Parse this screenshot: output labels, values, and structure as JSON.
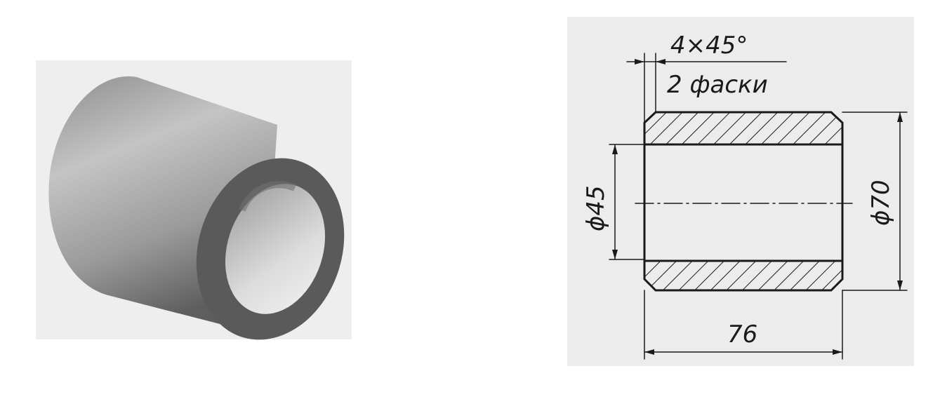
{
  "drawing": {
    "chamfer_spec": "4×45°",
    "chamfer_note": "2 фаски",
    "inner_diameter": "ϕ45",
    "outer_diameter": "ϕ70",
    "length": "76"
  },
  "colors": {
    "line": "#1a1a1a",
    "paper": "#ebebeb",
    "body_dark": "#5c5c5c",
    "body_light": "#bdbdbd"
  }
}
